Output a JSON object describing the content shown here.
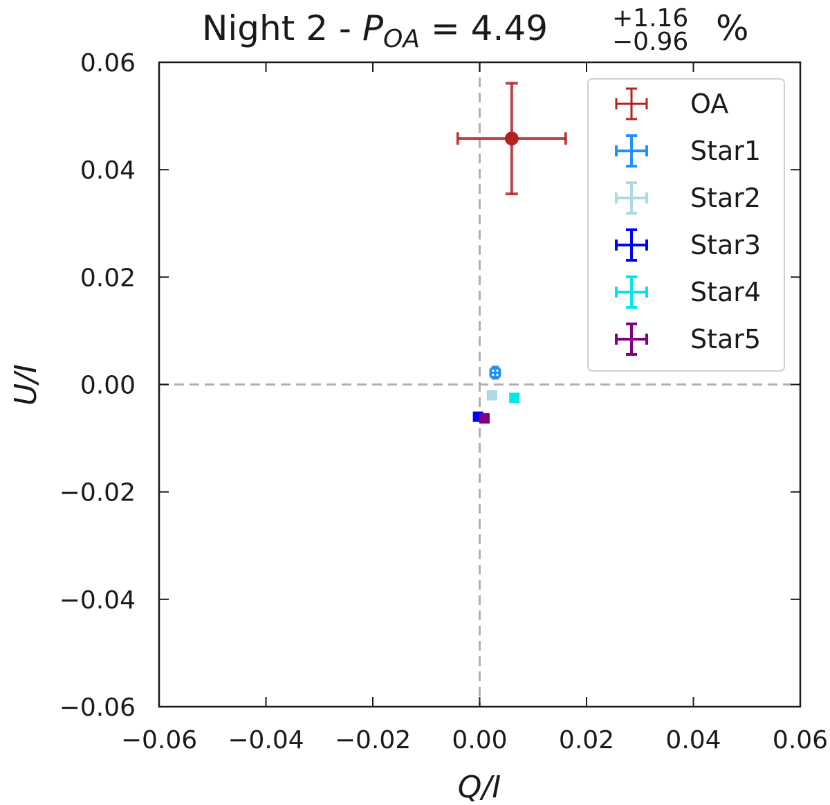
{
  "chart_data": {
    "type": "scatter",
    "title": {
      "prefix": "Night 2 - ",
      "symbol": "P",
      "symbol_sub": "OA",
      "equals": " = 4.49",
      "err_plus": "+1.16",
      "err_minus": "−0.96",
      "suffix": "%"
    },
    "xlabel": "Q/I",
    "ylabel": "U/I",
    "xlim": [
      -0.06,
      0.06
    ],
    "ylim": [
      -0.06,
      0.06
    ],
    "x_ticks": [
      -0.06,
      -0.04,
      -0.02,
      0.0,
      0.02,
      0.04,
      0.06
    ],
    "y_ticks": [
      -0.06,
      -0.04,
      -0.02,
      0.0,
      0.02,
      0.04,
      0.06
    ],
    "x_tick_labels": [
      "−0.06",
      "−0.04",
      "−0.02",
      "0.00",
      "0.02",
      "0.04",
      "0.06"
    ],
    "y_tick_labels": [
      "−0.06",
      "−0.04",
      "−0.02",
      "0.00",
      "0.02",
      "0.04",
      "0.06"
    ],
    "reference_lines": {
      "x": 0.0,
      "y": 0.0,
      "style": "dashed",
      "color": "#b0b0b0"
    },
    "legend_position": "top-right",
    "series": [
      {
        "name": "OA",
        "color": "#b22222",
        "marker": "circle",
        "x": 0.006,
        "y": 0.0458,
        "xerr": 0.0101,
        "yerr": 0.0103
      },
      {
        "name": "Star1",
        "color": "#1e90ff",
        "marker": "square",
        "x": 0.0029,
        "y": 0.0022,
        "xerr": 0.0009,
        "yerr": 0.0011
      },
      {
        "name": "Star2",
        "color": "#add8e6",
        "marker": "square",
        "x": 0.0023,
        "y": -0.002,
        "xerr": 0.0004,
        "yerr": 0.0004
      },
      {
        "name": "Star3",
        "color": "#0000ff",
        "marker": "square",
        "x": -0.0003,
        "y": -0.006,
        "xerr": 0.0004,
        "yerr": 0.0004
      },
      {
        "name": "Star4",
        "color": "#00e5ee",
        "marker": "square",
        "x": 0.0065,
        "y": -0.0025,
        "xerr": 0.0004,
        "yerr": 0.0004
      },
      {
        "name": "Star5",
        "color": "#800080",
        "marker": "square",
        "x": 0.0009,
        "y": -0.0063,
        "xerr": 0.0006,
        "yerr": 0.0004
      }
    ]
  }
}
